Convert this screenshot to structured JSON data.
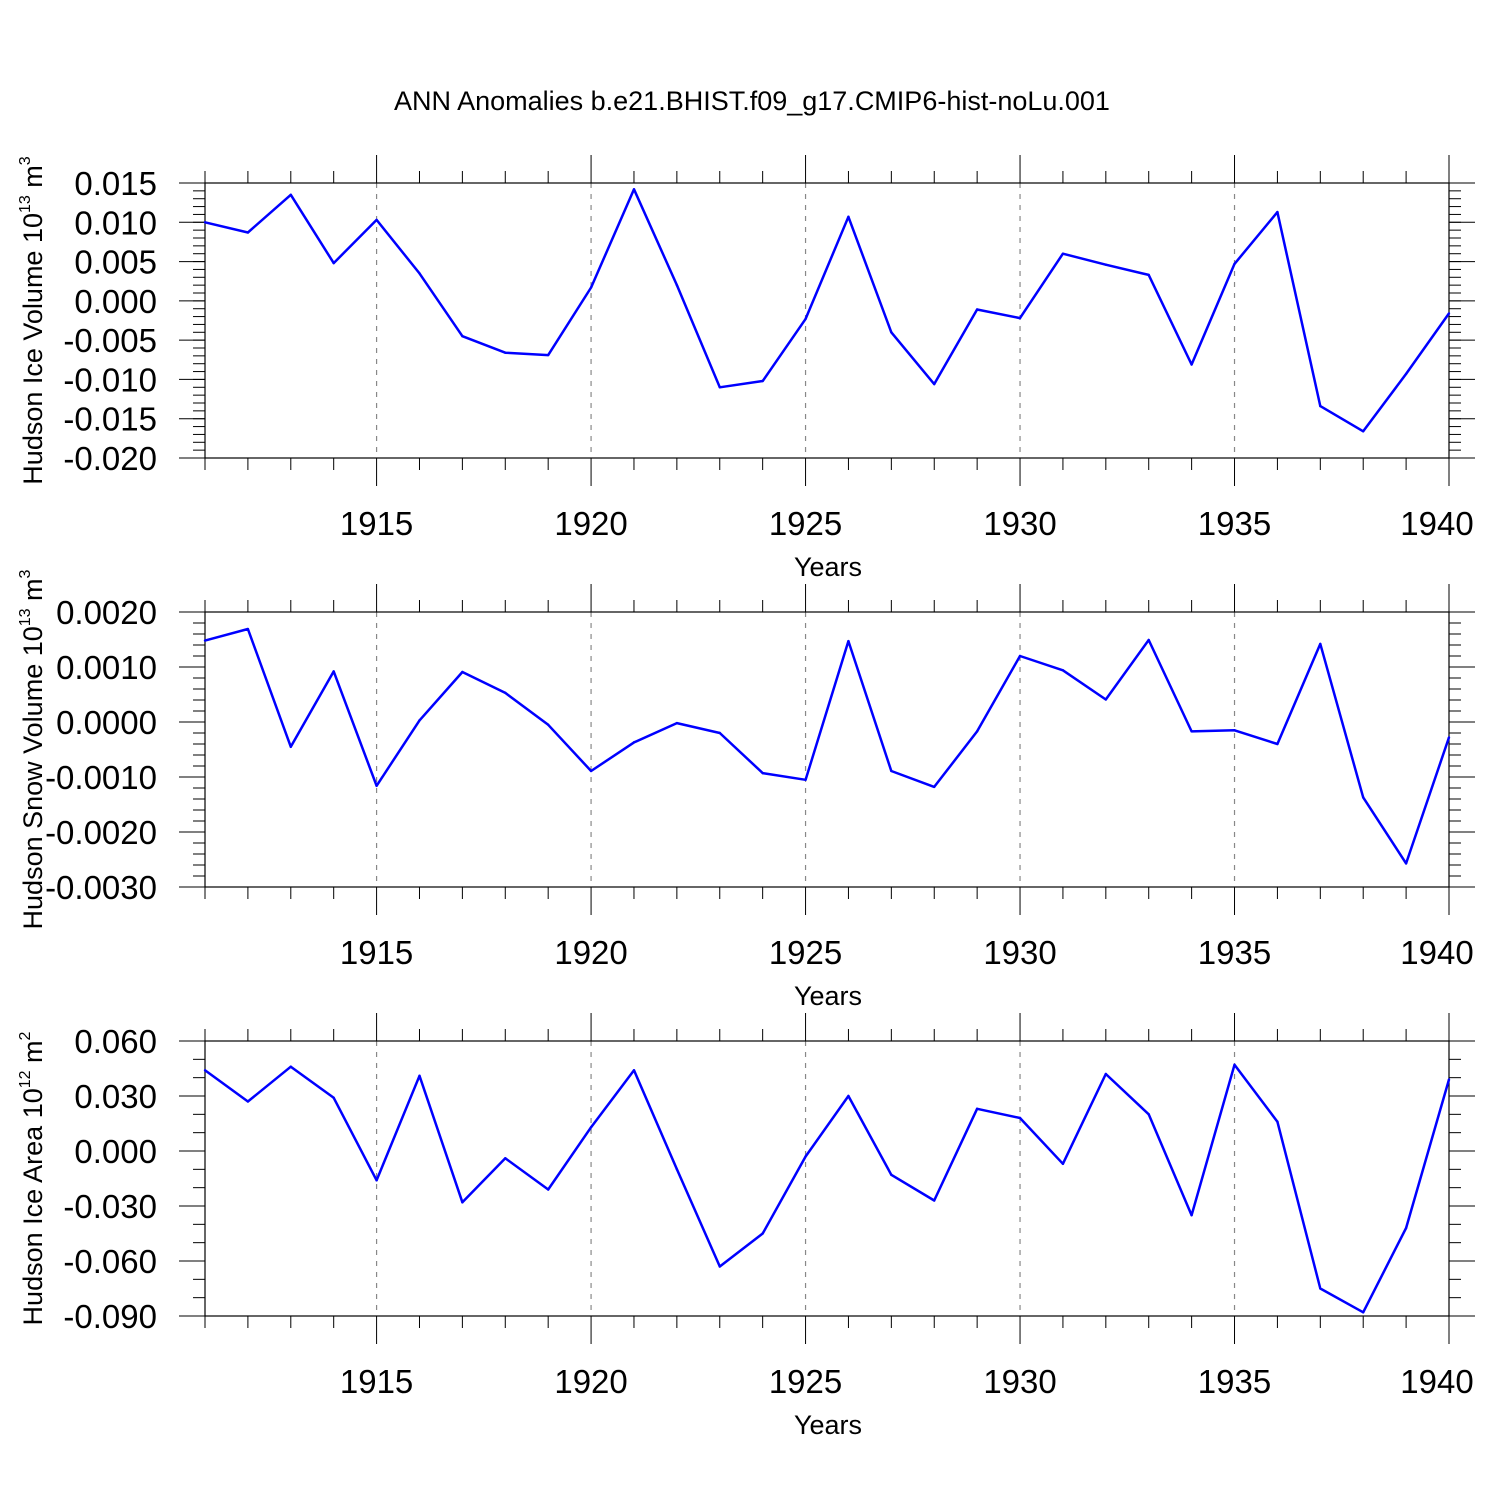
{
  "title": "ANN Anomalies b.e21.BHIST.f09_g17.CMIP6-hist-noLu.001",
  "chart_data": [
    {
      "type": "line",
      "id": "ice-volume",
      "ylabel": {
        "text": "Hudson Ice Volume 10",
        "sup": "13",
        "unit": " m",
        "unit_sup": "3"
      },
      "xlabel": "Years",
      "xlim": [
        1911,
        1940
      ],
      "ylim": [
        -0.02,
        0.015
      ],
      "yticks": [
        -0.02,
        -0.015,
        -0.01,
        -0.005,
        0.0,
        0.005,
        0.01,
        0.015
      ],
      "ytick_labels": [
        "-0.020",
        "-0.015",
        "-0.010",
        "-0.005",
        "0.000",
        "0.005",
        "0.010",
        "0.015"
      ],
      "yminor_step": 0.001,
      "xticks": [
        1915,
        1920,
        1925,
        1930,
        1935,
        1940
      ],
      "xtick_labels": [
        "1915",
        "1920",
        "1925",
        "1930",
        "1935",
        "1940"
      ],
      "x": [
        1911,
        1912,
        1913,
        1914,
        1915,
        1916,
        1917,
        1918,
        1919,
        1920,
        1921,
        1922,
        1923,
        1924,
        1925,
        1926,
        1927,
        1928,
        1929,
        1930,
        1931,
        1932,
        1933,
        1934,
        1935,
        1936,
        1937,
        1938,
        1939,
        1940
      ],
      "values": [
        0.01,
        0.0087,
        0.0135,
        0.0048,
        0.0103,
        0.0035,
        -0.0045,
        -0.0066,
        -0.0069,
        0.0017,
        0.0142,
        0.002,
        -0.011,
        -0.0102,
        -0.0023,
        0.0107,
        -0.004,
        -0.0106,
        -0.0011,
        -0.0022,
        0.006,
        0.0046,
        0.0033,
        -0.0081,
        0.0047,
        0.0113,
        -0.0134,
        -0.0166,
        -0.0093,
        -0.0016
      ],
      "series_color": "#0000ff"
    },
    {
      "type": "line",
      "id": "snow-volume",
      "ylabel": {
        "text": "Hudson Snow Volume 10",
        "sup": "13",
        "unit": " m",
        "unit_sup": "3"
      },
      "xlabel": "Years",
      "xlim": [
        1911,
        1940
      ],
      "ylim": [
        -0.003,
        0.002
      ],
      "yticks": [
        -0.003,
        -0.002,
        -0.001,
        0.0,
        0.001,
        0.002
      ],
      "ytick_labels": [
        "-0.0030",
        "-0.0020",
        "-0.0010",
        "0.0000",
        "0.0010",
        "0.0020"
      ],
      "yminor_step": 0.0002,
      "xticks": [
        1915,
        1920,
        1925,
        1930,
        1935,
        1940
      ],
      "xtick_labels": [
        "1915",
        "1920",
        "1925",
        "1930",
        "1935",
        "1940"
      ],
      "x": [
        1911,
        1912,
        1913,
        1914,
        1915,
        1916,
        1917,
        1918,
        1919,
        1920,
        1921,
        1922,
        1923,
        1924,
        1925,
        1926,
        1927,
        1928,
        1929,
        1930,
        1931,
        1932,
        1933,
        1934,
        1935,
        1936,
        1937,
        1938,
        1939,
        1940
      ],
      "values": [
        0.00148,
        0.00169,
        -0.00045,
        0.00092,
        -0.00116,
        3e-05,
        0.00091,
        0.00053,
        -5e-05,
        -0.00089,
        -0.00037,
        -2e-05,
        -0.0002,
        -0.00093,
        -0.00105,
        0.00147,
        -0.00089,
        -0.00118,
        -0.00017,
        0.0012,
        0.00094,
        0.00041,
        0.00149,
        -0.00017,
        -0.00015,
        -0.0004,
        0.00142,
        -0.00137,
        -0.00257,
        -0.00028
      ],
      "series_color": "#0000ff"
    },
    {
      "type": "line",
      "id": "ice-area",
      "ylabel": {
        "text": "Hudson Ice Area 10",
        "sup": "12",
        "unit": " m",
        "unit_sup": "2"
      },
      "xlabel": "Years",
      "xlim": [
        1911,
        1940
      ],
      "ylim": [
        -0.09,
        0.06
      ],
      "yticks": [
        -0.09,
        -0.06,
        -0.03,
        0.0,
        0.03,
        0.06
      ],
      "ytick_labels": [
        "-0.090",
        "-0.060",
        "-0.030",
        "0.000",
        "0.030",
        "0.060"
      ],
      "yminor_step": 0.01,
      "xticks": [
        1915,
        1920,
        1925,
        1930,
        1935,
        1940
      ],
      "xtick_labels": [
        "1915",
        "1920",
        "1925",
        "1930",
        "1935",
        "1940"
      ],
      "x": [
        1911,
        1912,
        1913,
        1914,
        1915,
        1916,
        1917,
        1918,
        1919,
        1920,
        1921,
        1922,
        1923,
        1924,
        1925,
        1926,
        1927,
        1928,
        1929,
        1930,
        1931,
        1932,
        1933,
        1934,
        1935,
        1936,
        1937,
        1938,
        1939,
        1940
      ],
      "values": [
        0.044,
        0.027,
        0.046,
        0.029,
        -0.016,
        0.041,
        -0.028,
        -0.004,
        -0.021,
        0.013,
        0.044,
        -0.01,
        -0.063,
        -0.045,
        -0.003,
        0.03,
        -0.013,
        -0.027,
        0.023,
        0.018,
        -0.007,
        0.042,
        0.02,
        -0.035,
        0.047,
        0.016,
        -0.075,
        -0.088,
        -0.042,
        0.039
      ],
      "series_color": "#0000ff"
    }
  ]
}
